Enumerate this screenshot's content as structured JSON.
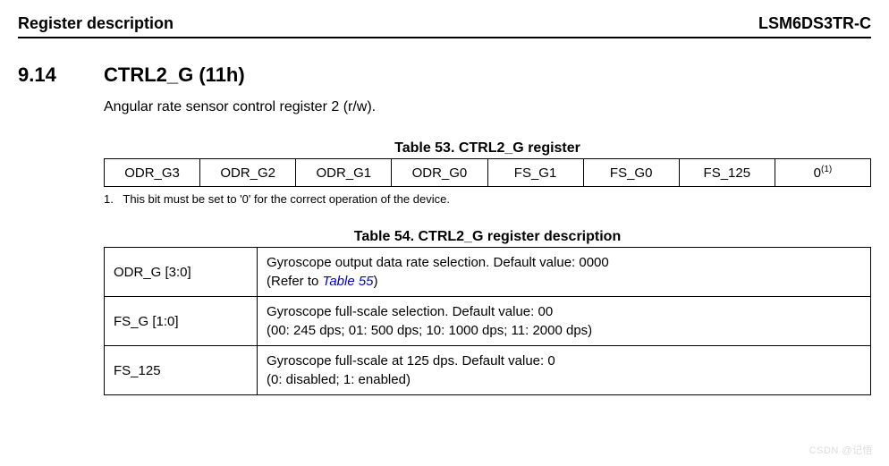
{
  "header": {
    "left": "Register description",
    "right": "LSM6DS3TR-C"
  },
  "section": {
    "number": "9.14",
    "title": "CTRL2_G (11h)",
    "subtitle": "Angular rate sensor control register 2 (r/w)."
  },
  "table53": {
    "caption": "Table 53. CTRL2_G register",
    "cells": [
      "ODR_G3",
      "ODR_G2",
      "ODR_G1",
      "ODR_G0",
      "FS_G1",
      "FS_G0",
      "FS_125",
      "0"
    ],
    "last_sup": "(1)"
  },
  "footnote": {
    "num": "1.",
    "text": "This bit must be set to '0' for the correct operation of the device."
  },
  "table54": {
    "caption": "Table 54. CTRL2_G register description",
    "rows": [
      {
        "name": "ODR_G [3:0]",
        "line1": "Gyroscope output data rate selection. Default value: 0000",
        "line2_prefix": "(Refer to ",
        "line2_link": "Table 55",
        "line2_suffix": ")"
      },
      {
        "name": "FS_G [1:0]",
        "line1": "Gyroscope full-scale selection. Default value: 00",
        "line2": "(00: 245 dps; 01: 500 dps; 10: 1000 dps; 11: 2000 dps)"
      },
      {
        "name": "FS_125",
        "line1": "Gyroscope full-scale at 125 dps. Default value: 0",
        "line2": "(0: disabled; 1: enabled)"
      }
    ]
  },
  "watermark": "CSDN @记悟"
}
